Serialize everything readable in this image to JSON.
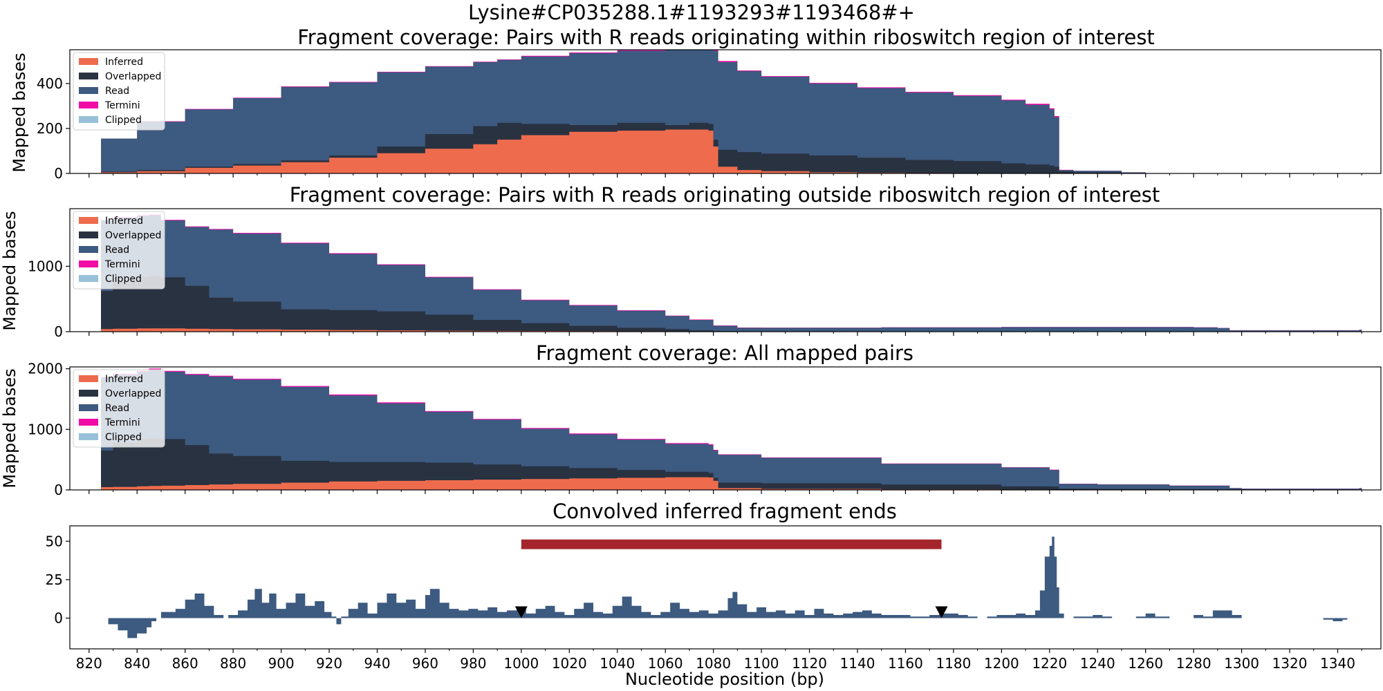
{
  "figure": {
    "suptitle": "Lysine#CP035288.1#1193293#1193468#+",
    "xlabel": "Nucleotide position (bp)"
  },
  "colors": {
    "inferred": "#ee6c4d",
    "overlapped": "#293241",
    "read": "#3d5a80",
    "termini": "#f20ca6",
    "clipped": "#98c1d9",
    "bar": "#a4262c",
    "marker": "#000000"
  },
  "chart_data": [
    {
      "type": "area",
      "title": "Fragment coverage: Pairs with R reads originating within riboswitch region of interest",
      "ylabel": "Mapped bases",
      "xlim": [
        812,
        1358
      ],
      "ylim": [
        0,
        550
      ],
      "yticks": [
        0,
        200,
        400
      ],
      "legend": [
        "Inferred",
        "Overlapped",
        "Read",
        "Termini",
        "Clipped"
      ],
      "legend_placement": "upper-left",
      "x": [
        825,
        840,
        860,
        880,
        900,
        920,
        940,
        960,
        980,
        990,
        1000,
        1020,
        1040,
        1060,
        1070,
        1078,
        1080,
        1082,
        1090,
        1100,
        1120,
        1140,
        1160,
        1180,
        1200,
        1210,
        1220,
        1222,
        1224,
        1230,
        1250,
        1260,
        1340,
        1349
      ],
      "series": [
        {
          "name": "Inferred",
          "values": [
            5,
            10,
            25,
            35,
            50,
            70,
            90,
            110,
            130,
            150,
            170,
            185,
            190,
            195,
            195,
            190,
            120,
            30,
            15,
            10,
            5,
            3,
            2,
            1,
            0,
            0,
            0,
            0,
            0,
            0,
            0,
            0,
            0,
            0
          ]
        },
        {
          "name": "Overlapped",
          "values": [
            8,
            15,
            30,
            42,
            58,
            80,
            120,
            175,
            210,
            225,
            220,
            215,
            225,
            215,
            225,
            220,
            150,
            105,
            95,
            88,
            80,
            70,
            60,
            55,
            45,
            40,
            35,
            30,
            10,
            5,
            2,
            0,
            0,
            0
          ]
        },
        {
          "name": "Read",
          "values": [
            155,
            230,
            285,
            335,
            385,
            405,
            450,
            475,
            495,
            505,
            520,
            535,
            545,
            555,
            555,
            555,
            545,
            495,
            455,
            430,
            400,
            380,
            360,
            345,
            325,
            305,
            285,
            250,
            15,
            12,
            5,
            0,
            0,
            0
          ]
        },
        {
          "name": "Termini",
          "values": [
            0,
            2,
            2,
            2,
            2,
            2,
            2,
            2,
            2,
            2,
            3,
            3,
            3,
            3,
            3,
            10,
            10,
            5,
            3,
            3,
            3,
            3,
            3,
            3,
            3,
            5,
            5,
            5,
            1,
            0,
            0,
            0,
            0,
            0
          ]
        },
        {
          "name": "Clipped",
          "values": [
            0,
            0,
            0,
            0,
            0,
            0,
            0,
            0,
            0,
            0,
            0,
            0,
            0,
            0,
            0,
            0,
            0,
            0,
            0,
            0,
            0,
            0,
            0,
            0,
            0,
            0,
            0,
            0,
            0,
            0,
            0,
            0,
            0,
            0
          ]
        }
      ]
    },
    {
      "type": "area",
      "title": "Fragment coverage: Pairs with R reads originating outside riboswitch region of interest",
      "ylabel": "Mapped bases",
      "xlim": [
        812,
        1358
      ],
      "ylim": [
        0,
        1880
      ],
      "yticks": [
        0,
        1000
      ],
      "legend": [
        "Inferred",
        "Overlapped",
        "Read",
        "Termini",
        "Clipped"
      ],
      "legend_placement": "upper-left",
      "x": [
        825,
        830,
        840,
        845,
        850,
        860,
        870,
        880,
        900,
        920,
        940,
        960,
        980,
        1000,
        1020,
        1040,
        1060,
        1070,
        1080,
        1090,
        1100,
        1150,
        1200,
        1250,
        1280,
        1290,
        1295,
        1300,
        1330,
        1349
      ],
      "series": [
        {
          "name": "Inferred",
          "values": [
            40,
            45,
            50,
            50,
            50,
            45,
            40,
            35,
            30,
            25,
            20,
            15,
            12,
            10,
            8,
            6,
            5,
            4,
            3,
            2,
            2,
            2,
            2,
            2,
            2,
            2,
            1,
            1,
            1,
            1
          ]
        },
        {
          "name": "Overlapped",
          "values": [
            620,
            760,
            840,
            850,
            830,
            700,
            520,
            460,
            340,
            330,
            310,
            260,
            180,
            130,
            90,
            60,
            40,
            20,
            10,
            5,
            3,
            3,
            3,
            3,
            3,
            3,
            2,
            2,
            2,
            2
          ]
        },
        {
          "name": "Read",
          "values": [
            1700,
            1740,
            1770,
            1780,
            1700,
            1600,
            1560,
            1500,
            1350,
            1190,
            1020,
            830,
            640,
            480,
            400,
            320,
            240,
            180,
            90,
            60,
            60,
            65,
            70,
            70,
            65,
            55,
            20,
            20,
            20,
            30
          ]
        },
        {
          "name": "Termini",
          "values": [
            5,
            10,
            10,
            10,
            10,
            10,
            10,
            10,
            10,
            10,
            10,
            8,
            8,
            8,
            8,
            8,
            6,
            6,
            5,
            3,
            2,
            2,
            2,
            2,
            2,
            2,
            2,
            2,
            2,
            2
          ]
        },
        {
          "name": "Clipped",
          "values": [
            0,
            0,
            0,
            0,
            0,
            0,
            0,
            0,
            0,
            0,
            0,
            0,
            0,
            0,
            0,
            0,
            0,
            0,
            0,
            0,
            0,
            0,
            0,
            0,
            0,
            0,
            0,
            0,
            0,
            0
          ]
        }
      ]
    },
    {
      "type": "area",
      "title": "Fragment coverage: All mapped pairs",
      "ylabel": "Mapped bases",
      "xlim": [
        812,
        1358
      ],
      "ylim": [
        0,
        2030
      ],
      "yticks": [
        0,
        1000,
        2000
      ],
      "legend": [
        "Inferred",
        "Overlapped",
        "Read",
        "Termini",
        "Clipped"
      ],
      "legend_placement": "upper-left",
      "x": [
        825,
        830,
        840,
        845,
        850,
        860,
        870,
        880,
        900,
        920,
        940,
        960,
        980,
        1000,
        1020,
        1040,
        1060,
        1078,
        1080,
        1082,
        1100,
        1150,
        1200,
        1220,
        1224,
        1240,
        1270,
        1295,
        1300,
        1349
      ],
      "series": [
        {
          "name": "Inferred",
          "values": [
            45,
            50,
            60,
            65,
            70,
            80,
            90,
            100,
            120,
            140,
            150,
            160,
            170,
            180,
            190,
            200,
            210,
            205,
            150,
            30,
            15,
            8,
            5,
            3,
            3,
            3,
            3,
            3,
            3,
            3
          ]
        },
        {
          "name": "Overlapped",
          "values": [
            650,
            780,
            840,
            850,
            840,
            740,
            600,
            560,
            480,
            460,
            460,
            450,
            420,
            390,
            360,
            330,
            300,
            280,
            200,
            120,
            110,
            90,
            60,
            55,
            20,
            15,
            10,
            10,
            5,
            5
          ]
        },
        {
          "name": "Read",
          "values": [
            1850,
            1900,
            1950,
            1990,
            1950,
            1900,
            1870,
            1820,
            1700,
            1560,
            1430,
            1290,
            1160,
            1010,
            920,
            830,
            760,
            740,
            650,
            580,
            530,
            430,
            370,
            330,
            100,
            90,
            70,
            30,
            20,
            30
          ]
        },
        {
          "name": "Termini",
          "values": [
            10,
            15,
            15,
            15,
            15,
            15,
            15,
            15,
            15,
            15,
            15,
            12,
            12,
            12,
            12,
            12,
            12,
            15,
            12,
            8,
            6,
            6,
            5,
            5,
            2,
            2,
            2,
            2,
            2,
            2
          ]
        },
        {
          "name": "Clipped",
          "values": [
            0,
            0,
            0,
            0,
            0,
            0,
            0,
            0,
            0,
            0,
            0,
            0,
            0,
            0,
            0,
            0,
            0,
            0,
            0,
            0,
            0,
            0,
            0,
            0,
            0,
            0,
            0,
            0,
            0,
            0
          ]
        }
      ]
    },
    {
      "type": "bar",
      "title": "Convolved inferred fragment ends",
      "ylabel": "",
      "xlabel": "Nucleotide position (bp)",
      "xlim": [
        812,
        1358
      ],
      "ylim": [
        -20,
        60
      ],
      "yticks": [
        0,
        25,
        50
      ],
      "xticks": [
        820,
        840,
        860,
        880,
        900,
        920,
        940,
        960,
        980,
        1000,
        1020,
        1040,
        1060,
        1080,
        1100,
        1120,
        1140,
        1160,
        1180,
        1200,
        1220,
        1240,
        1260,
        1280,
        1300,
        1320,
        1340
      ],
      "peaks": [
        [
          825,
          0
        ],
        [
          828,
          -4
        ],
        [
          832,
          -8
        ],
        [
          836,
          -13
        ],
        [
          840,
          -10
        ],
        [
          844,
          -6
        ],
        [
          846,
          -2
        ],
        [
          848,
          0
        ],
        [
          850,
          4
        ],
        [
          856,
          6
        ],
        [
          860,
          12
        ],
        [
          864,
          16
        ],
        [
          868,
          8
        ],
        [
          872,
          2
        ],
        [
          876,
          0
        ],
        [
          878,
          2
        ],
        [
          882,
          5
        ],
        [
          886,
          12
        ],
        [
          889,
          19
        ],
        [
          892,
          10
        ],
        [
          895,
          16
        ],
        [
          898,
          6
        ],
        [
          902,
          10
        ],
        [
          906,
          16
        ],
        [
          910,
          8
        ],
        [
          914,
          11
        ],
        [
          918,
          4
        ],
        [
          921,
          1
        ],
        [
          923,
          -4
        ],
        [
          925,
          1
        ],
        [
          928,
          6
        ],
        [
          932,
          10
        ],
        [
          936,
          3
        ],
        [
          940,
          10
        ],
        [
          944,
          16
        ],
        [
          948,
          10
        ],
        [
          952,
          12
        ],
        [
          956,
          6
        ],
        [
          960,
          15
        ],
        [
          962,
          19
        ],
        [
          966,
          10
        ],
        [
          970,
          6
        ],
        [
          974,
          5
        ],
        [
          978,
          6
        ],
        [
          982,
          5
        ],
        [
          986,
          7
        ],
        [
          990,
          4
        ],
        [
          994,
          5
        ],
        [
          998,
          6
        ],
        [
          1002,
          3
        ],
        [
          1006,
          6
        ],
        [
          1010,
          8
        ],
        [
          1014,
          4
        ],
        [
          1018,
          2
        ],
        [
          1022,
          6
        ],
        [
          1026,
          10
        ],
        [
          1030,
          4
        ],
        [
          1034,
          3
        ],
        [
          1038,
          8
        ],
        [
          1042,
          14
        ],
        [
          1046,
          8
        ],
        [
          1050,
          4
        ],
        [
          1054,
          2
        ],
        [
          1058,
          4
        ],
        [
          1062,
          10
        ],
        [
          1066,
          6
        ],
        [
          1070,
          4
        ],
        [
          1074,
          5
        ],
        [
          1078,
          3
        ],
        [
          1082,
          5
        ],
        [
          1086,
          13
        ],
        [
          1088,
          17
        ],
        [
          1090,
          9
        ],
        [
          1094,
          4
        ],
        [
          1098,
          7
        ],
        [
          1102,
          4
        ],
        [
          1106,
          5
        ],
        [
          1110,
          3
        ],
        [
          1114,
          5
        ],
        [
          1118,
          2
        ],
        [
          1122,
          6
        ],
        [
          1126,
          3
        ],
        [
          1130,
          2
        ],
        [
          1134,
          3
        ],
        [
          1138,
          4
        ],
        [
          1142,
          5
        ],
        [
          1146,
          3
        ],
        [
          1150,
          2
        ],
        [
          1154,
          2
        ],
        [
          1158,
          2
        ],
        [
          1162,
          1
        ],
        [
          1166,
          1
        ],
        [
          1170,
          2
        ],
        [
          1174,
          3
        ],
        [
          1178,
          3
        ],
        [
          1182,
          2
        ],
        [
          1186,
          1
        ],
        [
          1190,
          0
        ],
        [
          1194,
          1
        ],
        [
          1198,
          2
        ],
        [
          1202,
          2
        ],
        [
          1206,
          3
        ],
        [
          1210,
          2
        ],
        [
          1214,
          5
        ],
        [
          1216,
          18
        ],
        [
          1218,
          40
        ],
        [
          1220,
          47
        ],
        [
          1221,
          53
        ],
        [
          1222,
          40
        ],
        [
          1223,
          20
        ],
        [
          1224,
          3
        ],
        [
          1226,
          0
        ],
        [
          1230,
          1
        ],
        [
          1234,
          1
        ],
        [
          1238,
          2
        ],
        [
          1242,
          1
        ],
        [
          1246,
          0
        ],
        [
          1250,
          0
        ],
        [
          1256,
          1
        ],
        [
          1260,
          3
        ],
        [
          1264,
          1
        ],
        [
          1270,
          0
        ],
        [
          1276,
          0
        ],
        [
          1280,
          2
        ],
        [
          1284,
          1
        ],
        [
          1288,
          5
        ],
        [
          1292,
          5
        ],
        [
          1296,
          2
        ],
        [
          1300,
          0
        ],
        [
          1334,
          -1
        ],
        [
          1338,
          -2
        ],
        [
          1342,
          -1
        ]
      ],
      "region_bar": {
        "start": 1000,
        "end": 1175,
        "y": 48
      },
      "markers": [
        1000,
        1175
      ]
    }
  ]
}
